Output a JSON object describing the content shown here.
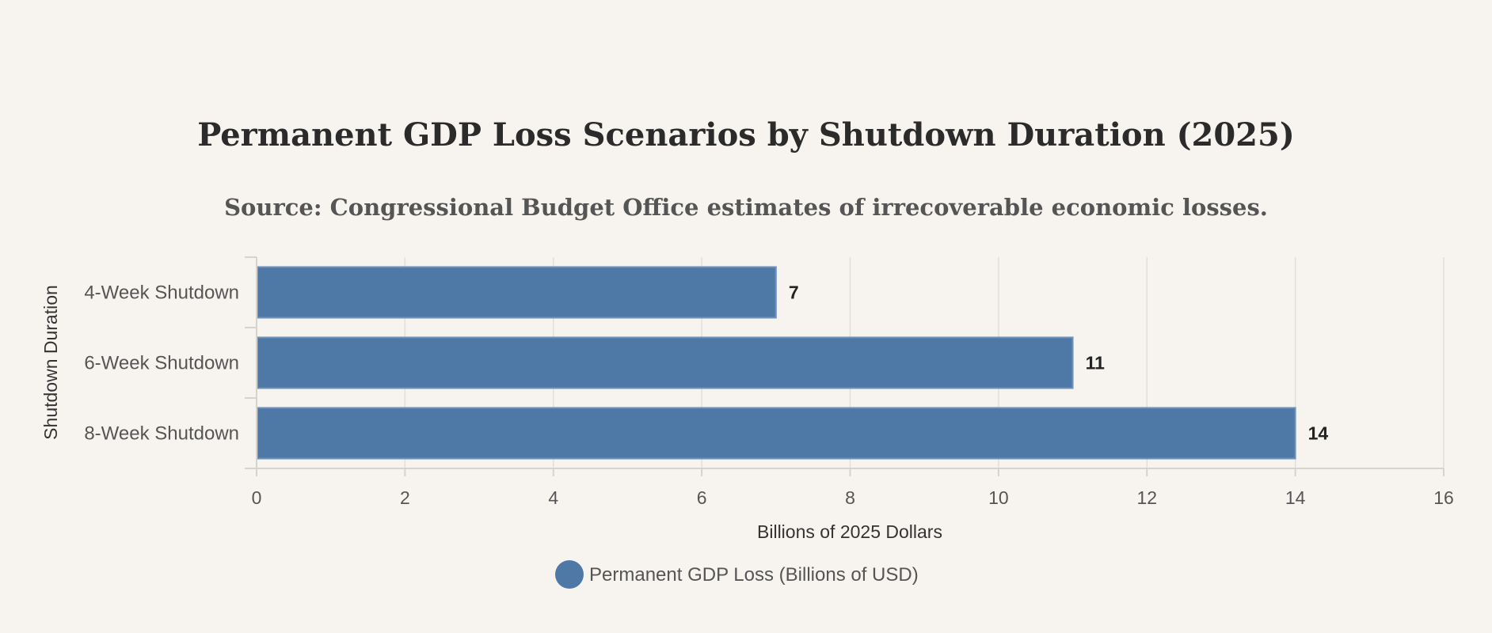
{
  "chart_data": {
    "type": "bar",
    "orientation": "horizontal",
    "title": "Permanent GDP Loss Scenarios by Shutdown Duration (2025)",
    "subtitle": "Source: Congressional Budget Office estimates of irrecoverable economic losses.",
    "categories": [
      "4-Week Shutdown",
      "6-Week Shutdown",
      "8-Week Shutdown"
    ],
    "series": [
      {
        "name": "Permanent GDP Loss (Billions of USD)",
        "values": [
          7,
          11,
          14
        ],
        "color": "#4e79a7"
      }
    ],
    "xlabel": "Billions of 2025 Dollars",
    "ylabel": "Shutdown Duration",
    "xlim": [
      0,
      16
    ],
    "xticks": [
      0,
      2,
      4,
      6,
      8,
      10,
      12,
      14,
      16
    ],
    "grid": true,
    "legend_position": "bottom-center"
  }
}
